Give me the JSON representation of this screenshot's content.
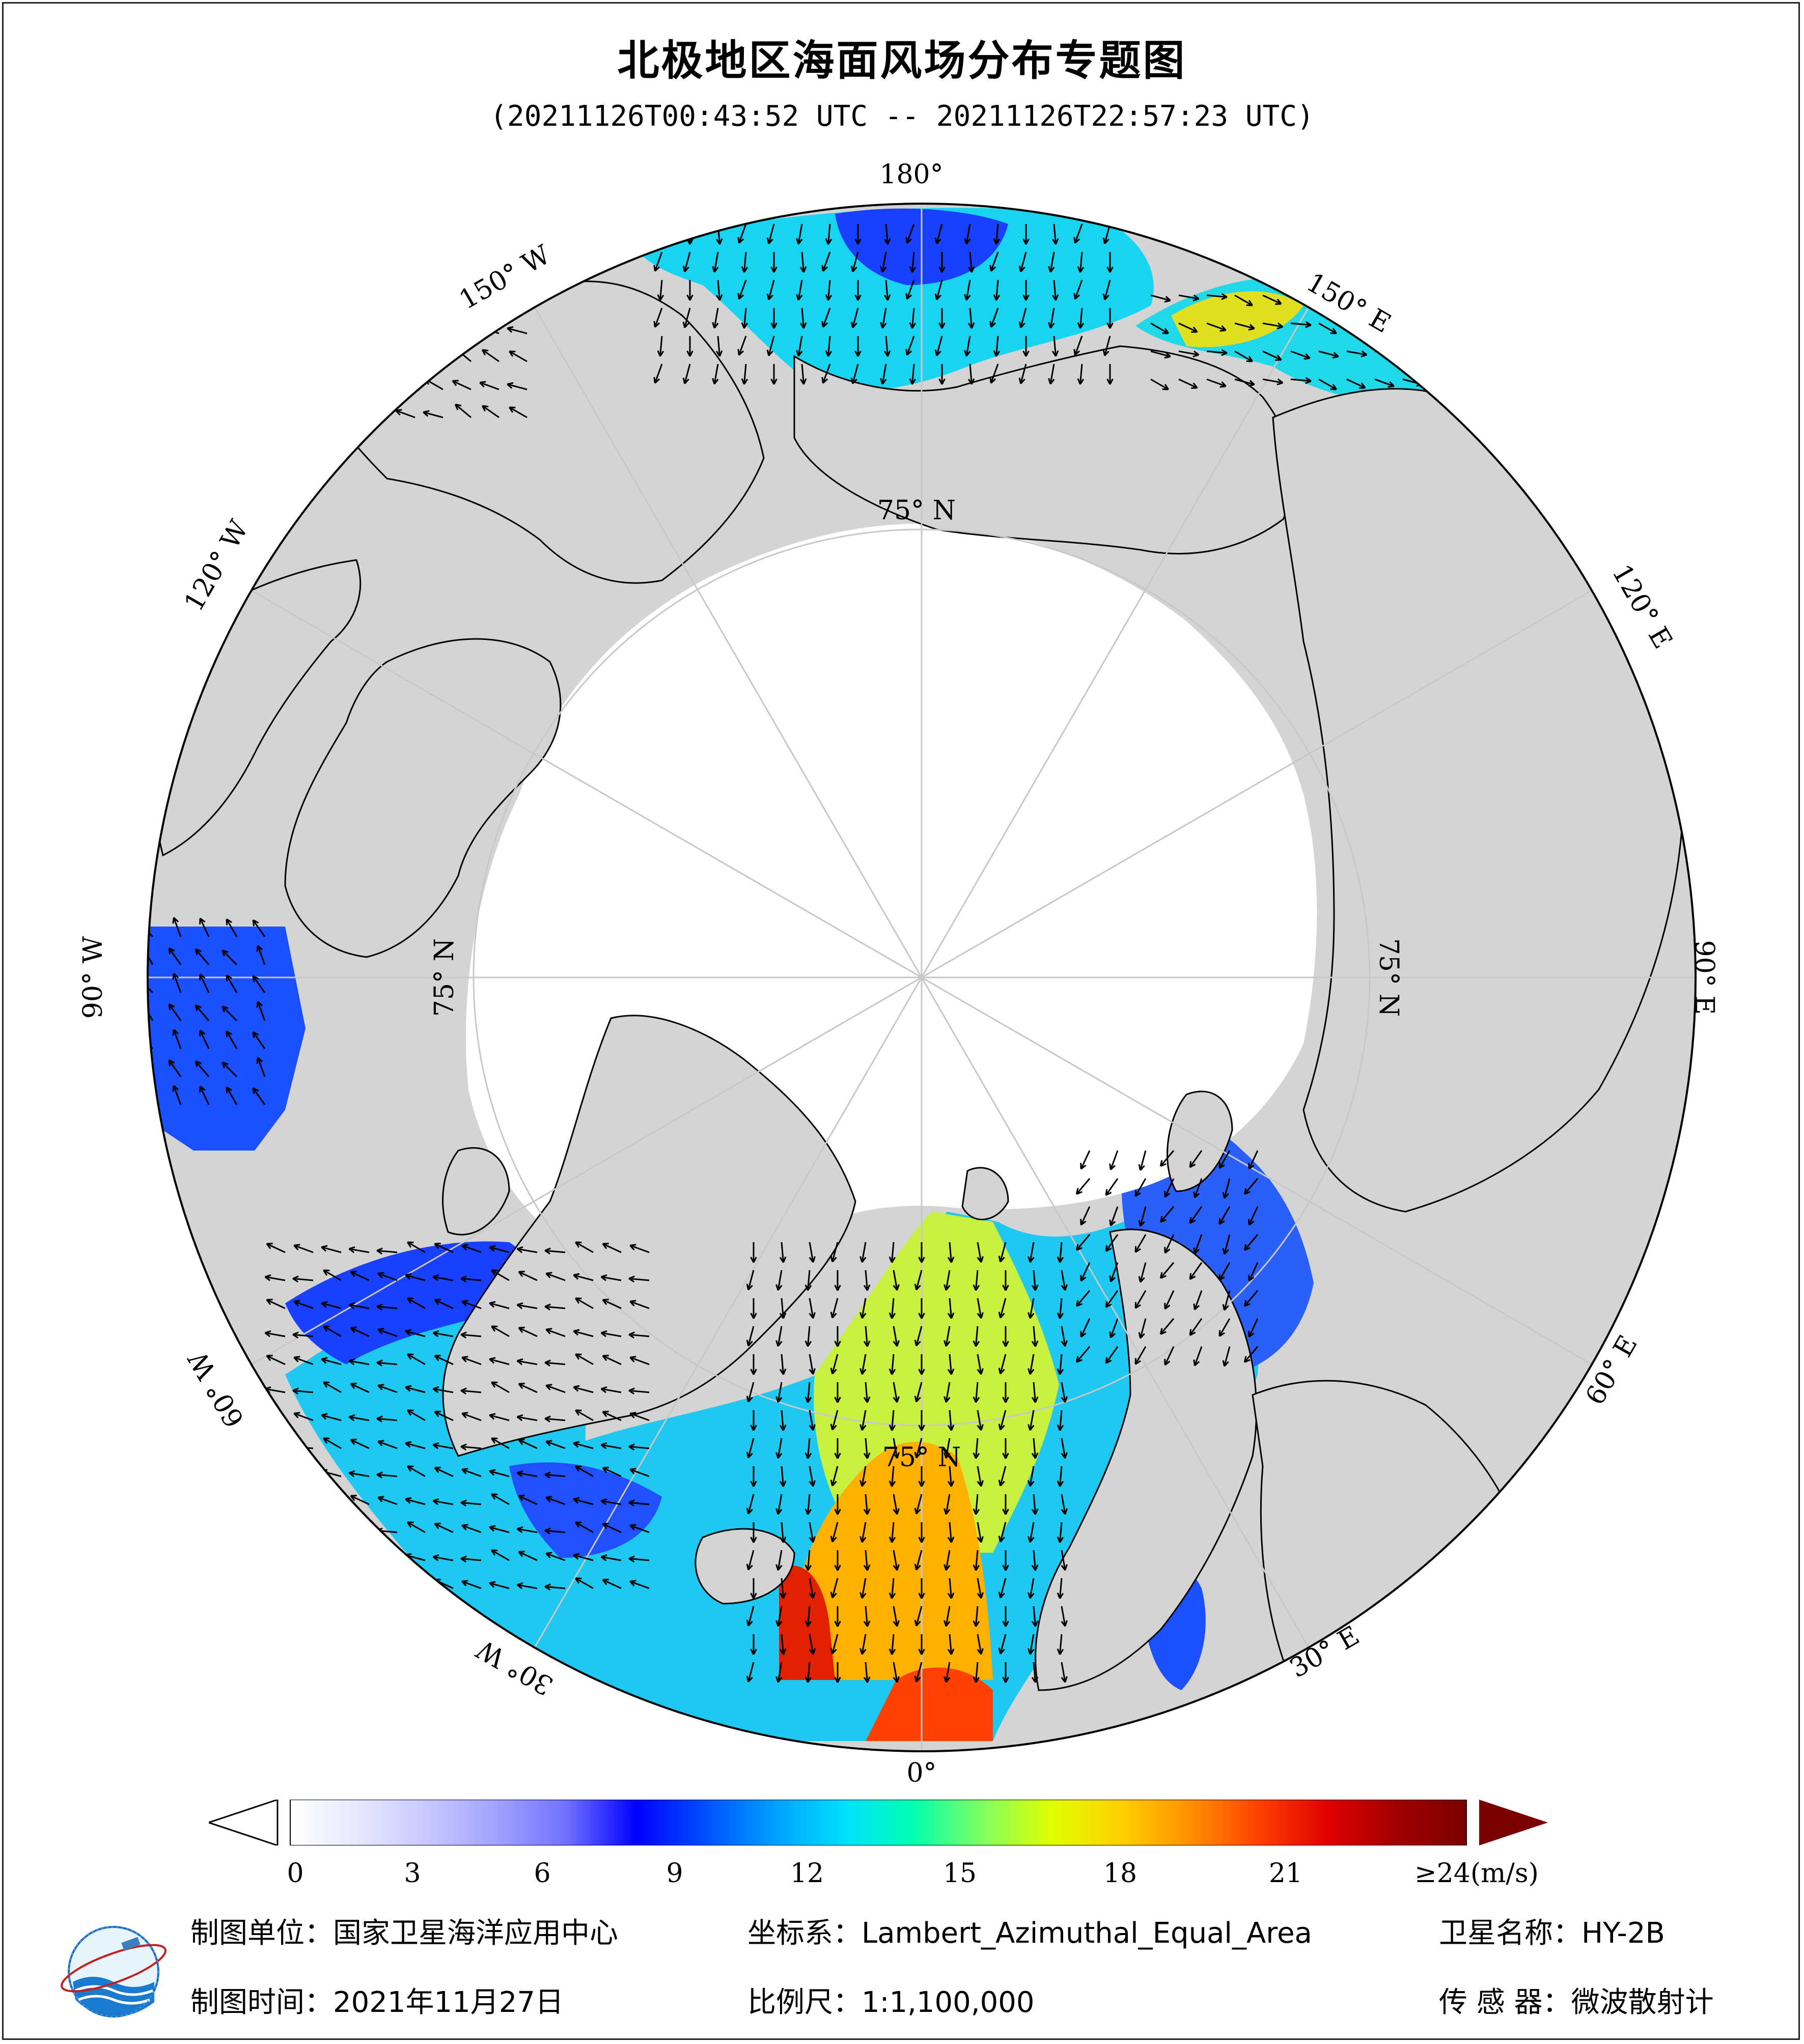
{
  "title": "北极地区海面风场分布专题图",
  "subtitle": "(20211126T00:43:52 UTC -- 20211126T22:57:23 UTC)",
  "map": {
    "projection_center": "North Pole",
    "lat_labels": [
      "75° N",
      "75° N",
      "75° N",
      "75° N"
    ],
    "lon_labels": [
      "180°",
      "150° E",
      "120° E",
      "90° E",
      "60° E",
      "30° E",
      "0°",
      "30° W",
      "60° W",
      "90° W",
      "120° W",
      "150° W"
    ],
    "colors": {
      "land": "#d4d4d4",
      "ice": "#ffffff",
      "coast": "#000000",
      "grid": "#c8c8c8"
    }
  },
  "colorbar": {
    "ticks": [
      "0",
      "3",
      "6",
      "9",
      "12",
      "15",
      "18",
      "21",
      "≥24(m/s)"
    ],
    "colors": [
      "#ffffff",
      "#e6e6ff",
      "#c8c8ff",
      "#a0a0ff",
      "#7070ff",
      "#0000ff",
      "#0050ff",
      "#00a0ff",
      "#00e0ff",
      "#00ffb0",
      "#80ff60",
      "#e0ff00",
      "#ffd000",
      "#ff9000",
      "#ff4000",
      "#e00000",
      "#a00000",
      "#7a0000"
    ]
  },
  "footer": {
    "unit": "制图单位：国家卫星海洋应用中心",
    "coords": "坐标系：Lambert_Azimuthal_Equal_Area",
    "satellite": "卫星名称：HY-2B",
    "date": "制图时间：2021年11月27日",
    "scale": "比例尺：1:1,100,000",
    "sensor": "传  感  器：微波散射计"
  },
  "logo": {
    "icon": "nsoas-globe-logo"
  }
}
